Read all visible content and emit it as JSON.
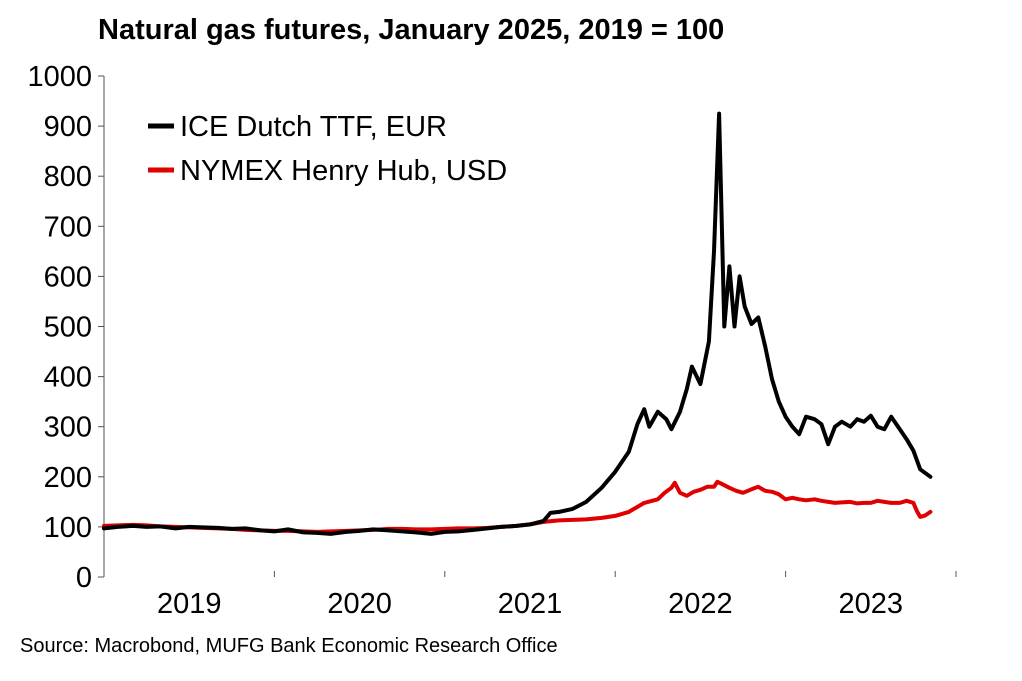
{
  "chart_data": {
    "type": "line",
    "title": "Natural gas futures, January 2025, 2019 = 100",
    "source": "Source: Macrobond, MUFG Bank Economic Research Office",
    "xlabel": "",
    "ylabel": "",
    "ylim": [
      0,
      1000
    ],
    "yticks": [
      0,
      100,
      200,
      300,
      400,
      500,
      600,
      700,
      800,
      900,
      1000
    ],
    "ytick_labels": [
      "0",
      "100",
      "200",
      "300",
      "400",
      "500",
      "600",
      "700",
      "800",
      "900",
      "1000"
    ],
    "xlim": [
      2019.0,
      2024.0
    ],
    "xtick_positions": [
      2019.0,
      2020.0,
      2021.0,
      2022.0,
      2023.0,
      2024.0
    ],
    "year_labels": [
      {
        "label": "2019",
        "x": 2019.5
      },
      {
        "label": "2020",
        "x": 2020.5
      },
      {
        "label": "2021",
        "x": 2021.5
      },
      {
        "label": "2022",
        "x": 2022.5
      },
      {
        "label": "2023",
        "x": 2023.5
      }
    ],
    "legend_position": "top-left",
    "series": [
      {
        "name": "ICE Dutch TTF, EUR",
        "color": "#000000",
        "points": [
          [
            2019.0,
            97
          ],
          [
            2019.08,
            100
          ],
          [
            2019.17,
            102
          ],
          [
            2019.25,
            100
          ],
          [
            2019.33,
            101
          ],
          [
            2019.42,
            97
          ],
          [
            2019.5,
            100
          ],
          [
            2019.58,
            99
          ],
          [
            2019.67,
            98
          ],
          [
            2019.75,
            96
          ],
          [
            2019.83,
            97
          ],
          [
            2019.92,
            93
          ],
          [
            2020.0,
            91
          ],
          [
            2020.08,
            95
          ],
          [
            2020.17,
            89
          ],
          [
            2020.25,
            88
          ],
          [
            2020.33,
            86
          ],
          [
            2020.42,
            90
          ],
          [
            2020.5,
            92
          ],
          [
            2020.58,
            95
          ],
          [
            2020.67,
            93
          ],
          [
            2020.75,
            91
          ],
          [
            2020.83,
            89
          ],
          [
            2020.92,
            86
          ],
          [
            2021.0,
            90
          ],
          [
            2021.08,
            91
          ],
          [
            2021.17,
            94
          ],
          [
            2021.25,
            97
          ],
          [
            2021.33,
            100
          ],
          [
            2021.42,
            102
          ],
          [
            2021.5,
            105
          ],
          [
            2021.58,
            112
          ],
          [
            2021.62,
            128
          ],
          [
            2021.67,
            130
          ],
          [
            2021.75,
            136
          ],
          [
            2021.83,
            150
          ],
          [
            2021.92,
            178
          ],
          [
            2022.0,
            210
          ],
          [
            2022.08,
            250
          ],
          [
            2022.13,
            305
          ],
          [
            2022.17,
            335
          ],
          [
            2022.2,
            300
          ],
          [
            2022.25,
            330
          ],
          [
            2022.3,
            315
          ],
          [
            2022.33,
            295
          ],
          [
            2022.38,
            330
          ],
          [
            2022.42,
            375
          ],
          [
            2022.45,
            420
          ],
          [
            2022.5,
            385
          ],
          [
            2022.55,
            470
          ],
          [
            2022.58,
            650
          ],
          [
            2022.61,
            925
          ],
          [
            2022.64,
            500
          ],
          [
            2022.67,
            620
          ],
          [
            2022.7,
            500
          ],
          [
            2022.73,
            600
          ],
          [
            2022.76,
            540
          ],
          [
            2022.8,
            505
          ],
          [
            2022.84,
            518
          ],
          [
            2022.88,
            460
          ],
          [
            2022.92,
            395
          ],
          [
            2022.96,
            350
          ],
          [
            2023.0,
            320
          ],
          [
            2023.04,
            300
          ],
          [
            2023.08,
            285
          ],
          [
            2023.12,
            320
          ],
          [
            2023.17,
            315
          ],
          [
            2023.21,
            305
          ],
          [
            2023.25,
            265
          ],
          [
            2023.29,
            300
          ],
          [
            2023.33,
            310
          ],
          [
            2023.38,
            300
          ],
          [
            2023.42,
            315
          ],
          [
            2023.46,
            310
          ],
          [
            2023.5,
            322
          ],
          [
            2023.54,
            300
          ],
          [
            2023.58,
            295
          ],
          [
            2023.62,
            320
          ],
          [
            2023.67,
            295
          ],
          [
            2023.71,
            275
          ],
          [
            2023.75,
            252
          ],
          [
            2023.79,
            215
          ],
          [
            2023.83,
            205
          ],
          [
            2023.85,
            200
          ]
        ]
      },
      {
        "name": "NYMEX Henry Hub, USD",
        "color": "#e00000",
        "points": [
          [
            2019.0,
            102
          ],
          [
            2019.08,
            103
          ],
          [
            2019.17,
            104
          ],
          [
            2019.25,
            103
          ],
          [
            2019.33,
            101
          ],
          [
            2019.42,
            100
          ],
          [
            2019.5,
            99
          ],
          [
            2019.58,
            98
          ],
          [
            2019.67,
            97
          ],
          [
            2019.75,
            96
          ],
          [
            2019.83,
            94
          ],
          [
            2019.92,
            93
          ],
          [
            2020.0,
            92
          ],
          [
            2020.08,
            92
          ],
          [
            2020.17,
            91
          ],
          [
            2020.25,
            90
          ],
          [
            2020.33,
            91
          ],
          [
            2020.42,
            92
          ],
          [
            2020.5,
            93
          ],
          [
            2020.58,
            94
          ],
          [
            2020.67,
            96
          ],
          [
            2020.75,
            96
          ],
          [
            2020.83,
            95
          ],
          [
            2020.92,
            95
          ],
          [
            2021.0,
            96
          ],
          [
            2021.08,
            97
          ],
          [
            2021.17,
            97
          ],
          [
            2021.25,
            98
          ],
          [
            2021.33,
            100
          ],
          [
            2021.42,
            102
          ],
          [
            2021.5,
            105
          ],
          [
            2021.58,
            110
          ],
          [
            2021.67,
            113
          ],
          [
            2021.75,
            114
          ],
          [
            2021.83,
            115
          ],
          [
            2021.92,
            118
          ],
          [
            2022.0,
            122
          ],
          [
            2022.08,
            130
          ],
          [
            2022.17,
            148
          ],
          [
            2022.25,
            155
          ],
          [
            2022.29,
            168
          ],
          [
            2022.33,
            178
          ],
          [
            2022.35,
            188
          ],
          [
            2022.38,
            168
          ],
          [
            2022.42,
            162
          ],
          [
            2022.46,
            170
          ],
          [
            2022.5,
            174
          ],
          [
            2022.54,
            180
          ],
          [
            2022.58,
            180
          ],
          [
            2022.6,
            190
          ],
          [
            2022.63,
            185
          ],
          [
            2022.67,
            178
          ],
          [
            2022.71,
            172
          ],
          [
            2022.75,
            168
          ],
          [
            2022.8,
            175
          ],
          [
            2022.84,
            180
          ],
          [
            2022.88,
            172
          ],
          [
            2022.92,
            170
          ],
          [
            2022.96,
            165
          ],
          [
            2023.0,
            155
          ],
          [
            2023.04,
            158
          ],
          [
            2023.08,
            155
          ],
          [
            2023.12,
            153
          ],
          [
            2023.17,
            155
          ],
          [
            2023.21,
            152
          ],
          [
            2023.25,
            150
          ],
          [
            2023.29,
            148
          ],
          [
            2023.33,
            149
          ],
          [
            2023.38,
            150
          ],
          [
            2023.42,
            147
          ],
          [
            2023.46,
            148
          ],
          [
            2023.5,
            148
          ],
          [
            2023.54,
            152
          ],
          [
            2023.58,
            150
          ],
          [
            2023.62,
            148
          ],
          [
            2023.67,
            148
          ],
          [
            2023.71,
            152
          ],
          [
            2023.75,
            148
          ],
          [
            2023.77,
            132
          ],
          [
            2023.79,
            120
          ],
          [
            2023.82,
            123
          ],
          [
            2023.85,
            130
          ]
        ]
      }
    ]
  }
}
